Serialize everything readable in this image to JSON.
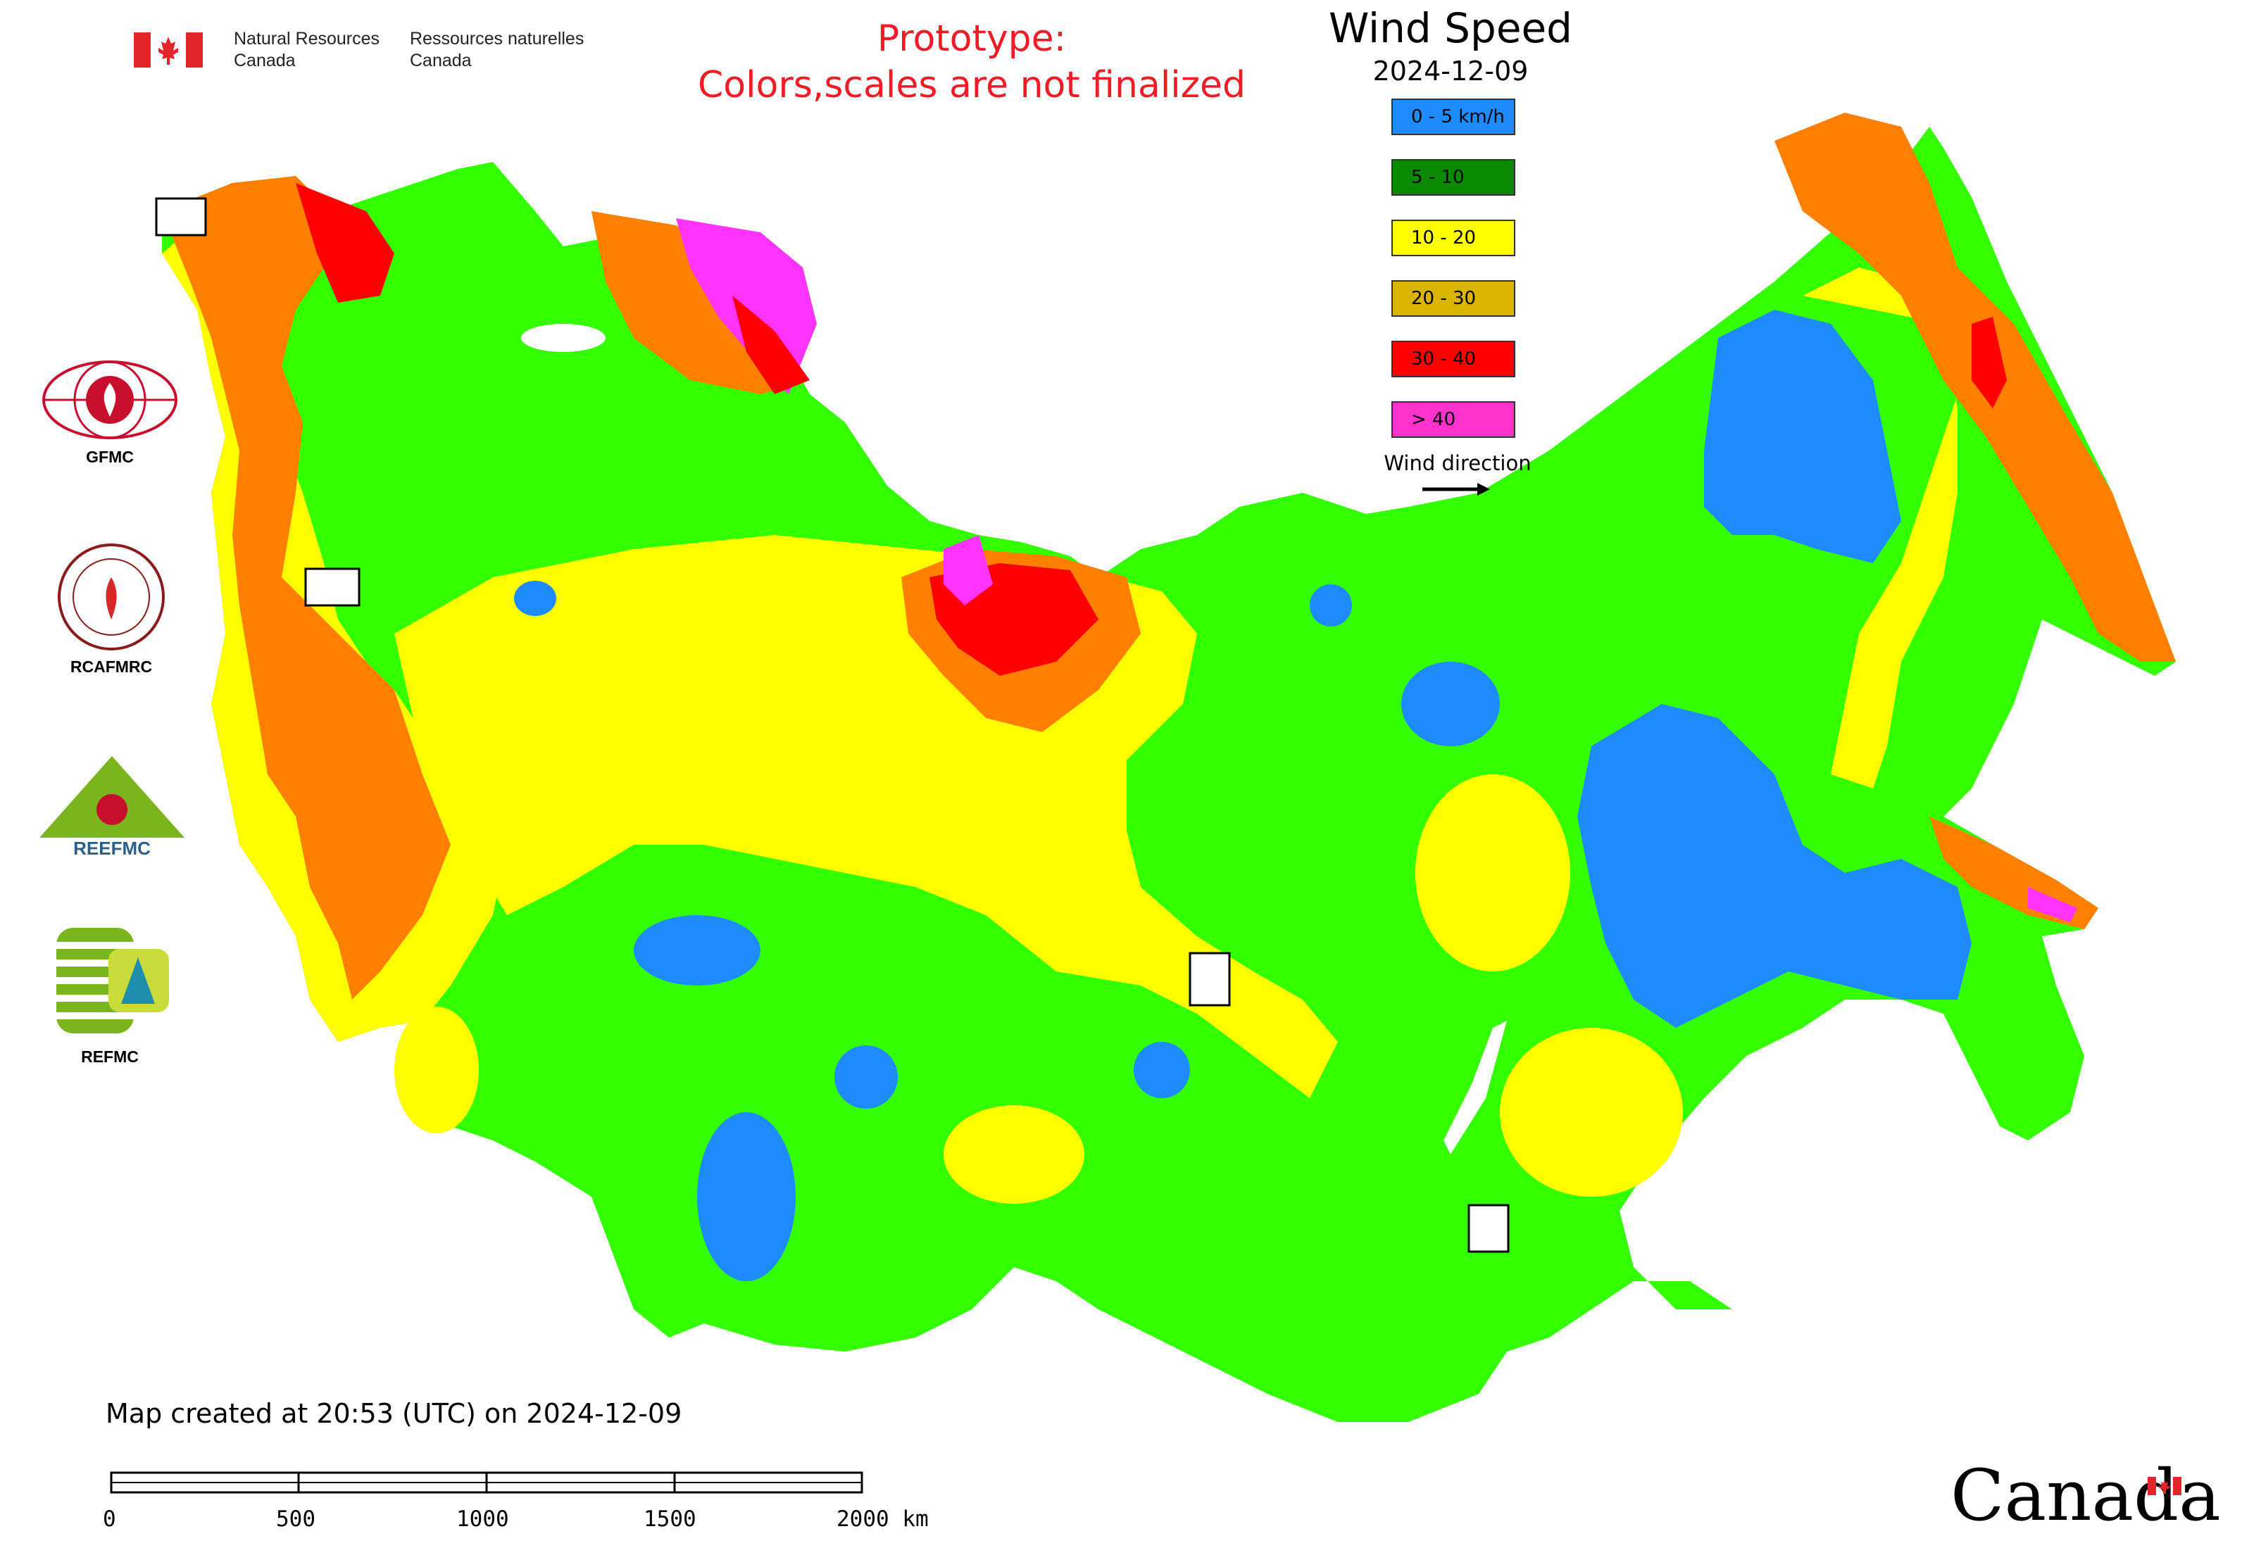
{
  "header": {
    "dept_en": "Natural Resources\nCanada",
    "dept_en_line1": "Natural Resources",
    "dept_en_line2": "Canada",
    "dept_fr_line1": "Ressources naturelles",
    "dept_fr_line2": "Canada",
    "prototype_line1": "Prototype:",
    "prototype_line2": "Colors,scales are not finalized",
    "prototype_color": "#ee1c25"
  },
  "legend": {
    "title": "Wind Speed",
    "date": "2024-12-09",
    "items": [
      {
        "label": "0 - 5 km/h",
        "color": "#1e8cff"
      },
      {
        "label": "5 - 10",
        "color": "#0a8a00"
      },
      {
        "label": "10 - 20",
        "color": "#ffff00"
      },
      {
        "label": "20 - 30",
        "color": "#d9b400"
      },
      {
        "label": "30 - 40",
        "color": "#ff0000"
      },
      {
        "label": "> 40",
        "color": "#ff33cc"
      }
    ],
    "wind_direction_label": "Wind direction"
  },
  "map_colors": {
    "calm": "#1e8cff",
    "low": "#33ff00",
    "moderate": "#ffff00",
    "strong": "#ff8000",
    "very_strong": "#ff0000",
    "extreme": "#ff33ff"
  },
  "logos": [
    {
      "name": "GFMC",
      "label": "GFMC"
    },
    {
      "name": "RCAFMRC",
      "label": "RCAFMRC"
    },
    {
      "name": "REEFMC",
      "label": ""
    },
    {
      "name": "REFMC",
      "label": "REFMC"
    }
  ],
  "footer": {
    "created": "Map created at 20:53 (UTC) on 2024-12-09",
    "scale_ticks": [
      "0",
      "500",
      "1000",
      "1500",
      "2000 km"
    ],
    "wordmark": "Canada"
  }
}
